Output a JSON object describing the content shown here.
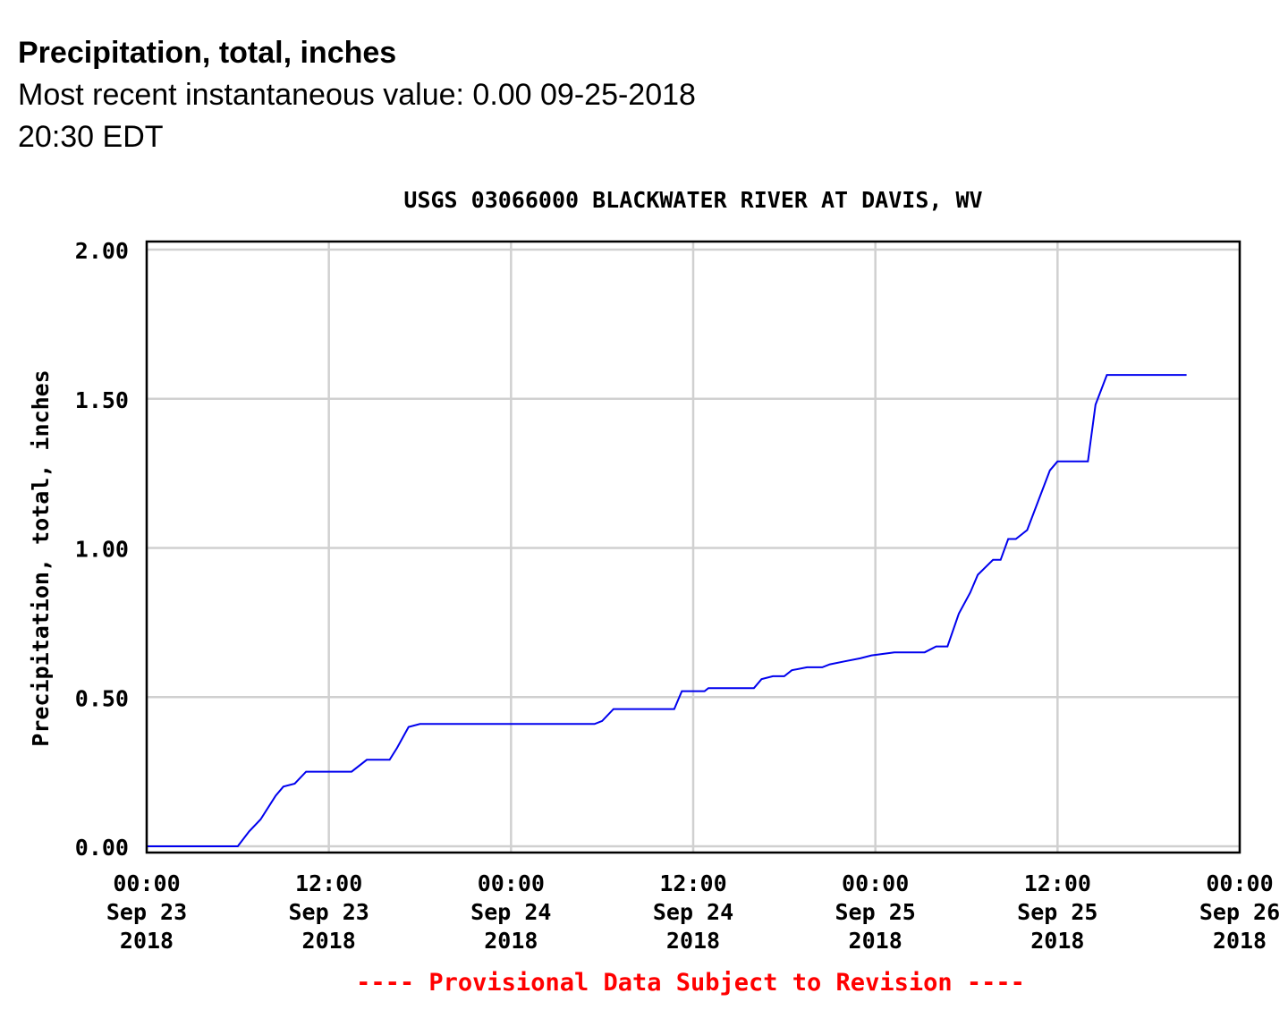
{
  "header": {
    "title": "Precipitation, total, inches",
    "recent_value": "Most recent instantaneous value: 0.00 09-25-2018   20:30 EDT"
  },
  "chart_data": {
    "type": "line",
    "title": "USGS 03066000 BLACKWATER RIVER AT DAVIS, WV",
    "ylabel": "Precipitation, total, inches",
    "xlabel": "",
    "ylim": [
      0,
      2
    ],
    "xlim": [
      "2018-09-23 00:00",
      "2018-09-26 00:00"
    ],
    "grid": true,
    "yticks": [
      "0.00",
      "0.50",
      "1.00",
      "1.50",
      "2.00"
    ],
    "xticks": [
      {
        "t": "2018-09-23 00:00",
        "label": [
          "00:00",
          "Sep 23",
          "2018"
        ]
      },
      {
        "t": "2018-09-23 12:00",
        "label": [
          "12:00",
          "Sep 23",
          "2018"
        ]
      },
      {
        "t": "2018-09-24 00:00",
        "label": [
          "00:00",
          "Sep 24",
          "2018"
        ]
      },
      {
        "t": "2018-09-24 12:00",
        "label": [
          "12:00",
          "Sep 24",
          "2018"
        ]
      },
      {
        "t": "2018-09-25 00:00",
        "label": [
          "00:00",
          "Sep 25",
          "2018"
        ]
      },
      {
        "t": "2018-09-25 12:00",
        "label": [
          "12:00",
          "Sep 25",
          "2018"
        ]
      },
      {
        "t": "2018-09-26 00:00",
        "label": [
          "00:00",
          "Sep 26",
          "2018"
        ]
      }
    ],
    "line_color": "#0000ee",
    "footnote": "---- Provisional Data Subject to Revision ----",
    "footnote_color": "#ff0000",
    "series": [
      {
        "points": [
          [
            "2018-09-23 00:00",
            0.0
          ],
          [
            "2018-09-23 06:00",
            0.0
          ],
          [
            "2018-09-23 06:45",
            0.05
          ],
          [
            "2018-09-23 07:30",
            0.09
          ],
          [
            "2018-09-23 08:30",
            0.17
          ],
          [
            "2018-09-23 09:00",
            0.2
          ],
          [
            "2018-09-23 09:45",
            0.21
          ],
          [
            "2018-09-23 10:30",
            0.25
          ],
          [
            "2018-09-23 13:30",
            0.25
          ],
          [
            "2018-09-23 14:30",
            0.29
          ],
          [
            "2018-09-23 16:00",
            0.29
          ],
          [
            "2018-09-23 16:30",
            0.33
          ],
          [
            "2018-09-23 17:15",
            0.4
          ],
          [
            "2018-09-23 18:00",
            0.41
          ],
          [
            "2018-09-24 05:30",
            0.41
          ],
          [
            "2018-09-24 06:00",
            0.42
          ],
          [
            "2018-09-24 06:45",
            0.46
          ],
          [
            "2018-09-24 10:45",
            0.46
          ],
          [
            "2018-09-24 11:15",
            0.52
          ],
          [
            "2018-09-24 12:45",
            0.52
          ],
          [
            "2018-09-24 13:00",
            0.53
          ],
          [
            "2018-09-24 16:00",
            0.53
          ],
          [
            "2018-09-24 16:30",
            0.56
          ],
          [
            "2018-09-24 17:15",
            0.57
          ],
          [
            "2018-09-24 18:00",
            0.57
          ],
          [
            "2018-09-24 18:30",
            0.59
          ],
          [
            "2018-09-24 19:30",
            0.6
          ],
          [
            "2018-09-24 20:30",
            0.6
          ],
          [
            "2018-09-24 21:00",
            0.61
          ],
          [
            "2018-09-24 22:00",
            0.62
          ],
          [
            "2018-09-24 23:00",
            0.63
          ],
          [
            "2018-09-24 23:45",
            0.64
          ],
          [
            "2018-09-25 01:15",
            0.65
          ],
          [
            "2018-09-25 03:15",
            0.65
          ],
          [
            "2018-09-25 04:00",
            0.67
          ],
          [
            "2018-09-25 04:45",
            0.67
          ],
          [
            "2018-09-25 05:30",
            0.78
          ],
          [
            "2018-09-25 06:15",
            0.85
          ],
          [
            "2018-09-25 06:45",
            0.91
          ],
          [
            "2018-09-25 07:45",
            0.96
          ],
          [
            "2018-09-25 08:15",
            0.96
          ],
          [
            "2018-09-25 08:45",
            1.03
          ],
          [
            "2018-09-25 09:15",
            1.03
          ],
          [
            "2018-09-25 10:00",
            1.06
          ],
          [
            "2018-09-25 10:45",
            1.16
          ],
          [
            "2018-09-25 11:30",
            1.26
          ],
          [
            "2018-09-25 12:00",
            1.29
          ],
          [
            "2018-09-25 14:00",
            1.29
          ],
          [
            "2018-09-25 14:30",
            1.48
          ],
          [
            "2018-09-25 15:15",
            1.58
          ],
          [
            "2018-09-25 20:30",
            1.58
          ]
        ]
      }
    ]
  }
}
